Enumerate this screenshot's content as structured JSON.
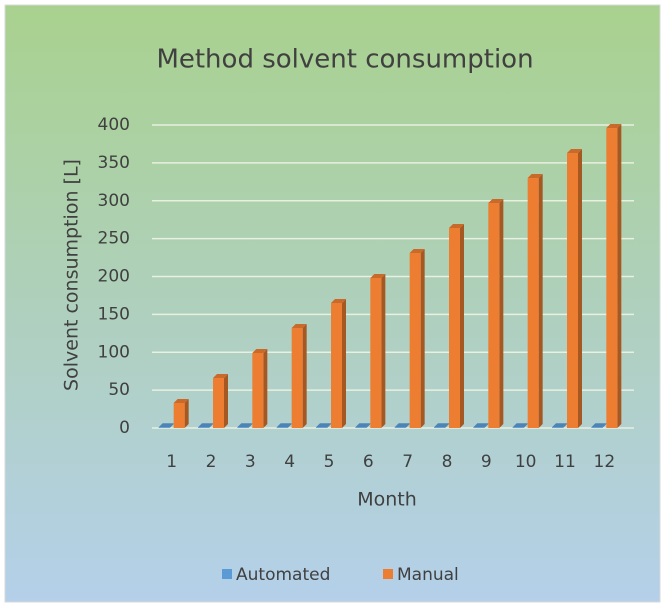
{
  "chart_data": {
    "type": "bar",
    "title": "Method solvent consumption",
    "x_label": "Month",
    "y_label": "Solvent consumption [L]",
    "categories": [
      "1",
      "2",
      "3",
      "4",
      "5",
      "6",
      "7",
      "8",
      "9",
      "10",
      "11",
      "12"
    ],
    "series": [
      {
        "name": "Automated",
        "color": "#5b9bd5",
        "values": [
          1,
          1,
          1,
          1,
          1,
          1,
          1,
          1,
          1,
          1,
          1,
          1
        ]
      },
      {
        "name": "Manual",
        "color": "#ed7d31",
        "values": [
          33,
          66,
          99,
          132,
          165,
          198,
          231,
          264,
          297,
          330,
          363,
          396
        ]
      }
    ],
    "ylim": [
      0,
      400
    ],
    "yticks": [
      0,
      50,
      100,
      150,
      200,
      250,
      300,
      350,
      400
    ],
    "grid": true,
    "legend": "bottom"
  }
}
